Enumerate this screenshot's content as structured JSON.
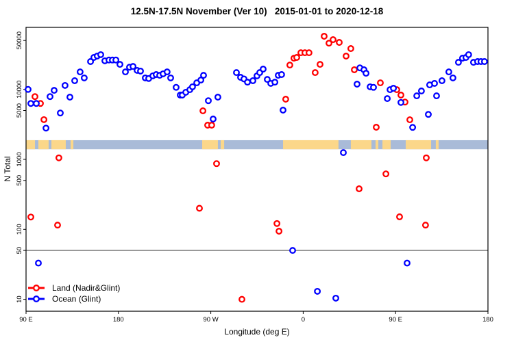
{
  "title": "12.5N-17.5N November (Ver 10)   2015-01-01 to 2020-12-18",
  "axes": {
    "y_label": "N Total",
    "x_label": "Longitude (deg E)"
  },
  "legend": [
    {
      "id": "land",
      "label": "Land (Nadir&Glint)",
      "color": "#FF0000"
    },
    {
      "id": "ocean",
      "label": "Ocean (Glint)",
      "color": "#0000FF"
    }
  ],
  "map_strip": {
    "description": "world coastline strip for latitude band 12.5N-17.5N",
    "ocean_color": "#A9BBD8",
    "land_color": "#FBD78A",
    "top_value": 1880,
    "bottom_value": 1395,
    "land_segments_deg": [
      [
        0,
        8.7
      ],
      [
        12,
        22
      ],
      [
        24.7,
        38.7
      ],
      [
        43.4,
        46.1
      ],
      [
        171.6,
        186.9
      ],
      [
        189.6,
        193
      ],
      [
        250.4,
        304.4
      ],
      [
        316.4,
        336.5
      ],
      [
        340.5,
        343.2
      ],
      [
        347.2,
        355.2
      ],
      [
        369.9,
        394.6
      ],
      [
        399.2,
        401.9
      ]
    ]
  },
  "chart_data": {
    "type": "scatter",
    "title": "12.5N-17.5N November (Ver 10)   2015-01-01 to 2020-12-18",
    "xlabel": "Longitude (deg E)",
    "ylabel": "N Total",
    "x_axis": {
      "unit": "degrees east of 90E (axis spans 450 deg, wrapping eastward)",
      "range_deg": [
        0,
        450
      ],
      "ticks": [
        {
          "label": "90 E",
          "deg": 0
        },
        {
          "label": "180",
          "deg": 90
        },
        {
          "label": "90 W",
          "deg": 180
        },
        {
          "label": "0",
          "deg": 270
        },
        {
          "label": "90 E",
          "deg": 360
        },
        {
          "label": "180",
          "deg": 450
        }
      ]
    },
    "y_axis": {
      "scale": "log10",
      "range": [
        8,
        70000
      ],
      "ticks": [
        {
          "label": "10",
          "value": 10
        },
        {
          "label": "50",
          "value": 50
        },
        {
          "label": "100",
          "value": 100
        },
        {
          "label": "500",
          "value": 500
        },
        {
          "label": "1000",
          "value": 1000
        },
        {
          "label": "5000",
          "value": 5000
        },
        {
          "label": "10000",
          "value": 10000
        },
        {
          "label": "50000",
          "value": 50000
        }
      ]
    },
    "reference_line_y": 50,
    "series": [
      {
        "id": "land",
        "name": "Land (Nadir&Glint)",
        "color": "#FF0000",
        "points": [
          [
            4.7,
            150
          ],
          [
            8.7,
            7900
          ],
          [
            14,
            6300
          ],
          [
            17.4,
            3700
          ],
          [
            30.7,
            115
          ],
          [
            32,
            1050
          ],
          [
            168.9,
            200
          ],
          [
            172.3,
            4940
          ],
          [
            176.9,
            3080
          ],
          [
            180.9,
            3080
          ],
          [
            185.6,
            870
          ],
          [
            210.3,
            10
          ],
          [
            244.4,
            121
          ],
          [
            246.4,
            94
          ],
          [
            253,
            7250
          ],
          [
            257,
            22300
          ],
          [
            261,
            27900
          ],
          [
            263.7,
            28600
          ],
          [
            267.7,
            33400
          ],
          [
            271.7,
            33400
          ],
          [
            275.7,
            33400
          ],
          [
            281.7,
            17400
          ],
          [
            286.4,
            22800
          ],
          [
            290.4,
            57500
          ],
          [
            295.1,
            45800
          ],
          [
            299.1,
            51400
          ],
          [
            305.1,
            46900
          ],
          [
            311.8,
            29900
          ],
          [
            316.4,
            38300
          ],
          [
            319.8,
            19100
          ],
          [
            324.5,
            380
          ],
          [
            341.2,
            2880
          ],
          [
            345.2,
            12400
          ],
          [
            350.6,
            620
          ],
          [
            361.2,
            9900
          ],
          [
            363.9,
            151
          ],
          [
            365.2,
            8300
          ],
          [
            369.2,
            6600
          ],
          [
            373.9,
            3680
          ],
          [
            389.2,
            115
          ],
          [
            389.9,
            1050
          ]
        ]
      },
      {
        "id": "ocean",
        "name": "Ocean (Glint)",
        "color": "#0000FF",
        "points": [
          [
            2,
            10000
          ],
          [
            4.7,
            6300
          ],
          [
            10,
            6300
          ],
          [
            12,
            33
          ],
          [
            19.4,
            2800
          ],
          [
            23.4,
            7900
          ],
          [
            27.4,
            9700
          ],
          [
            33.4,
            4600
          ],
          [
            38,
            11400
          ],
          [
            42.7,
            7750
          ],
          [
            47.4,
            13300
          ],
          [
            52.7,
            17800
          ],
          [
            56.7,
            14600
          ],
          [
            62.8,
            25000
          ],
          [
            66.1,
            28600
          ],
          [
            69.4,
            30000
          ],
          [
            72.8,
            31400
          ],
          [
            76.8,
            25600
          ],
          [
            80.8,
            26300
          ],
          [
            84.1,
            26300
          ],
          [
            87.5,
            26300
          ],
          [
            91.5,
            22800
          ],
          [
            96.8,
            17800
          ],
          [
            100.8,
            20800
          ],
          [
            104.2,
            21300
          ],
          [
            108.2,
            18700
          ],
          [
            111.5,
            18300
          ],
          [
            116.2,
            14600
          ],
          [
            119.5,
            14300
          ],
          [
            123.5,
            15600
          ],
          [
            126.8,
            16300
          ],
          [
            130.2,
            15900
          ],
          [
            133.5,
            16700
          ],
          [
            137.5,
            17800
          ],
          [
            140.9,
            14600
          ],
          [
            146.2,
            10700
          ],
          [
            150.2,
            8300
          ],
          [
            152.2,
            8300
          ],
          [
            155.6,
            9100
          ],
          [
            159.6,
            9900
          ],
          [
            162.2,
            10900
          ],
          [
            166.3,
            12400
          ],
          [
            170.3,
            13600
          ],
          [
            172.9,
            15900
          ],
          [
            177.6,
            6900
          ],
          [
            182.3,
            3770
          ],
          [
            186.9,
            7750
          ],
          [
            205,
            17400
          ],
          [
            209,
            14900
          ],
          [
            212.3,
            14100
          ],
          [
            215.7,
            12700
          ],
          [
            221,
            13300
          ],
          [
            225,
            15600
          ],
          [
            227.7,
            17400
          ],
          [
            231,
            19500
          ],
          [
            235,
            13900
          ],
          [
            238.4,
            12200
          ],
          [
            242.4,
            12700
          ],
          [
            245.7,
            15900
          ],
          [
            249,
            16300
          ],
          [
            250.4,
            5060
          ],
          [
            259.7,
            50
          ],
          [
            283.8,
            13
          ],
          [
            301.8,
            10.4
          ],
          [
            309.1,
            1250
          ],
          [
            322.5,
            11900
          ],
          [
            325.2,
            20300
          ],
          [
            329.2,
            19100
          ],
          [
            331.2,
            17000
          ],
          [
            335.2,
            10900
          ],
          [
            338.5,
            10700
          ],
          [
            351.9,
            7400
          ],
          [
            354.6,
            9900
          ],
          [
            357.9,
            10400
          ],
          [
            365.2,
            6500
          ],
          [
            371.2,
            33
          ],
          [
            376.6,
            2870
          ],
          [
            380.6,
            8100
          ],
          [
            385.2,
            9500
          ],
          [
            391.9,
            4400
          ],
          [
            393.2,
            11600
          ],
          [
            397.9,
            12200
          ],
          [
            399.9,
            8100
          ],
          [
            405.2,
            13300
          ],
          [
            411.9,
            17800
          ],
          [
            415.9,
            14600
          ],
          [
            421.2,
            24400
          ],
          [
            425.2,
            28000
          ],
          [
            428.6,
            28600
          ],
          [
            431.2,
            31400
          ],
          [
            435.9,
            24400
          ],
          [
            439.9,
            25000
          ],
          [
            443.2,
            25000
          ],
          [
            446.6,
            25000
          ]
        ]
      }
    ]
  }
}
